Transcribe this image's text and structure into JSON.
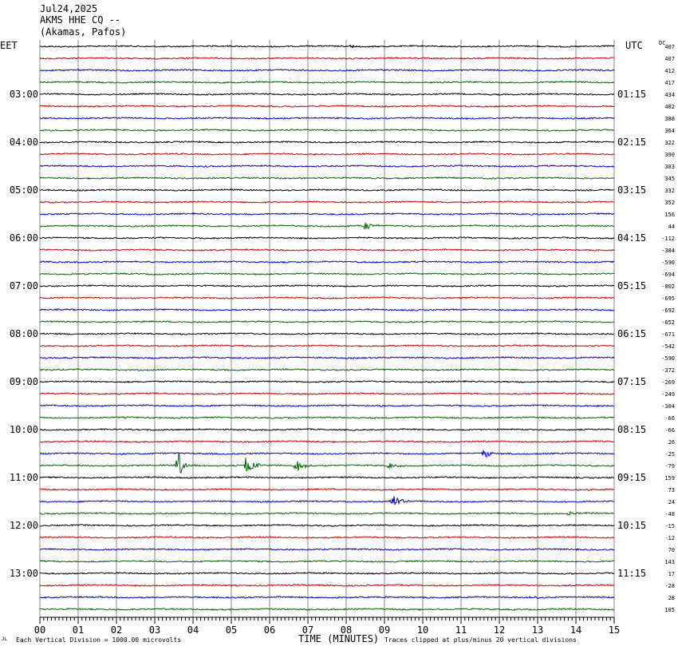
{
  "header": {
    "date": "Jul24,2025",
    "station": "AKMS HHE CQ --",
    "location": "(Akamas, Pafos)"
  },
  "left_timezone": "EET",
  "right_timezone": "UTC",
  "dc_label": "DC",
  "footer": {
    "scale_note": "Each Vertical Division = 1000.00 microvolts",
    "xlabel": "TIME (MINUTES)",
    "clip_note": "Traces clipped at plus/minus 20 vertical divisions",
    "logo_text": "JL"
  },
  "colors": {
    "trace_cycle": [
      "#000000",
      "#cc0000",
      "#0000cc",
      "#006600"
    ],
    "grid": "#888888"
  },
  "chart_data": {
    "type": "line",
    "xlabel": "TIME (MINUTES)",
    "xlim": [
      0,
      15
    ],
    "x_ticks": [
      "00",
      "01",
      "02",
      "03",
      "04",
      "05",
      "06",
      "07",
      "08",
      "09",
      "10",
      "11",
      "12",
      "13",
      "14",
      "15"
    ],
    "rows_per_hour": 4,
    "minutes_per_row": 15,
    "left_hour_labels": [
      "03:00",
      "04:00",
      "05:00",
      "06:00",
      "07:00",
      "08:00",
      "09:00",
      "10:00",
      "11:00",
      "12:00",
      "13:00"
    ],
    "right_hour_labels": [
      "01:15",
      "02:15",
      "03:15",
      "04:15",
      "05:15",
      "06:15",
      "07:15",
      "08:15",
      "09:15",
      "10:15",
      "11:15"
    ],
    "hour_label_first_row": 4,
    "dc_offsets": [
      "407",
      "407",
      "412",
      "417",
      "434",
      "402",
      "388",
      "364",
      "322",
      "390",
      "383",
      "345",
      "332",
      "352",
      "156",
      "44",
      "-112",
      "-384",
      "-590",
      "-694",
      "-802",
      "-695",
      "-692",
      "-652",
      "-671",
      "-542",
      "-590",
      "-372",
      "-269",
      "-249",
      "-304",
      "-66",
      "-66",
      "26",
      "-25",
      "-79",
      "159",
      "73",
      "24",
      "-48",
      "-15",
      "-12",
      "70",
      "143",
      "17",
      "-28",
      "28",
      "105"
    ],
    "events": [
      {
        "row": 0,
        "minute": 8.1,
        "amplitude": 2
      },
      {
        "row": 9,
        "minute": 7.2,
        "amplitude": 2
      },
      {
        "row": 15,
        "minute": 8.5,
        "amplitude": 6
      },
      {
        "row": 34,
        "minute": 11.6,
        "amplitude": 7
      },
      {
        "row": 35,
        "minute": 3.6,
        "amplitude": 18
      },
      {
        "row": 35,
        "minute": 5.4,
        "amplitude": 16
      },
      {
        "row": 35,
        "minute": 6.7,
        "amplitude": 9
      },
      {
        "row": 35,
        "minute": 9.1,
        "amplitude": 5
      },
      {
        "row": 38,
        "minute": 9.2,
        "amplitude": 12
      },
      {
        "row": 39,
        "minute": 13.8,
        "amplitude": 3
      },
      {
        "row": 46,
        "minute": 12.8,
        "amplitude": 4
      }
    ]
  }
}
